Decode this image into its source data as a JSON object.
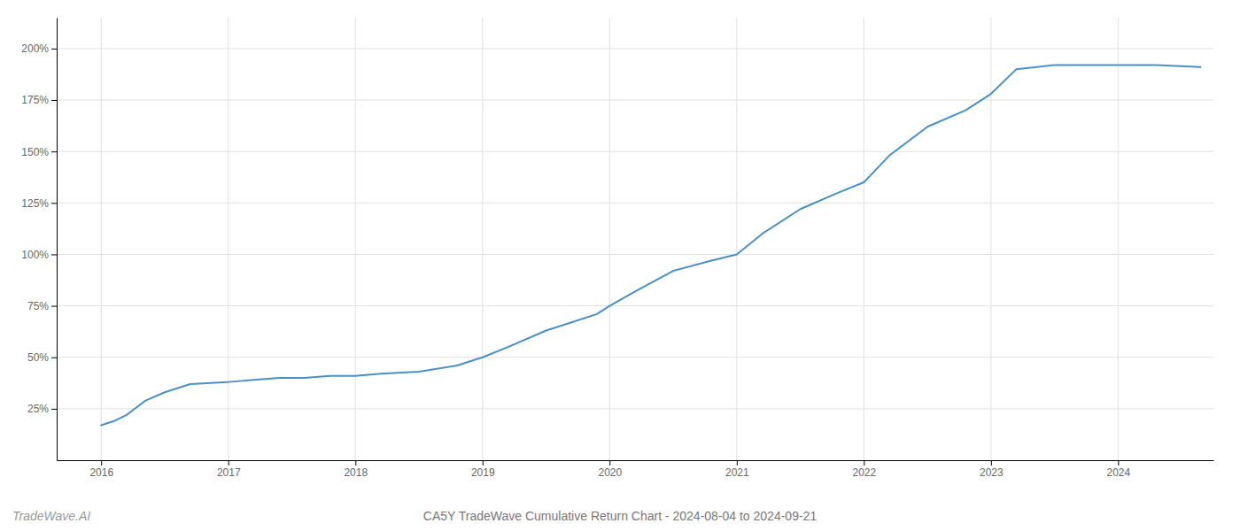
{
  "chart_data": {
    "type": "line",
    "title": "CA5Y TradeWave Cumulative Return Chart - 2024-08-04 to 2024-09-21",
    "annotations": [
      "TradeWave.AI"
    ],
    "x": [
      2016.0,
      2016.1,
      2016.2,
      2016.35,
      2016.5,
      2016.7,
      2017.0,
      2017.2,
      2017.4,
      2017.6,
      2017.8,
      2018.0,
      2018.2,
      2018.5,
      2018.8,
      2019.0,
      2019.2,
      2019.5,
      2019.7,
      2019.9,
      2020.0,
      2020.2,
      2020.5,
      2020.8,
      2021.0,
      2021.2,
      2021.5,
      2021.8,
      2022.0,
      2022.2,
      2022.5,
      2022.8,
      2023.0,
      2023.2,
      2023.5,
      2023.8,
      2024.0,
      2024.3,
      2024.65
    ],
    "values": [
      17,
      19,
      22,
      29,
      33,
      37,
      38,
      39,
      40,
      40,
      41,
      41,
      42,
      43,
      46,
      50,
      55,
      63,
      67,
      71,
      75,
      82,
      92,
      97,
      100,
      110,
      122,
      130,
      135,
      148,
      162,
      170,
      178,
      190,
      192,
      192,
      192,
      192,
      191
    ],
    "color": "#4a90c4",
    "xlim": [
      2015.65,
      2024.75
    ],
    "xticks": [
      2016,
      2017,
      2018,
      2019,
      2020,
      2021,
      2022,
      2023,
      2024
    ],
    "ylim": [
      0,
      215
    ],
    "yticks": [
      {
        "value": 25,
        "label": "25%"
      },
      {
        "value": 50,
        "label": "50%"
      },
      {
        "value": 75,
        "label": "75%"
      },
      {
        "value": 100,
        "label": "100%"
      },
      {
        "value": 125,
        "label": "125%"
      },
      {
        "value": 150,
        "label": "150%"
      },
      {
        "value": 175,
        "label": "175%"
      },
      {
        "value": 200,
        "label": "200%"
      }
    ],
    "grid": true
  }
}
